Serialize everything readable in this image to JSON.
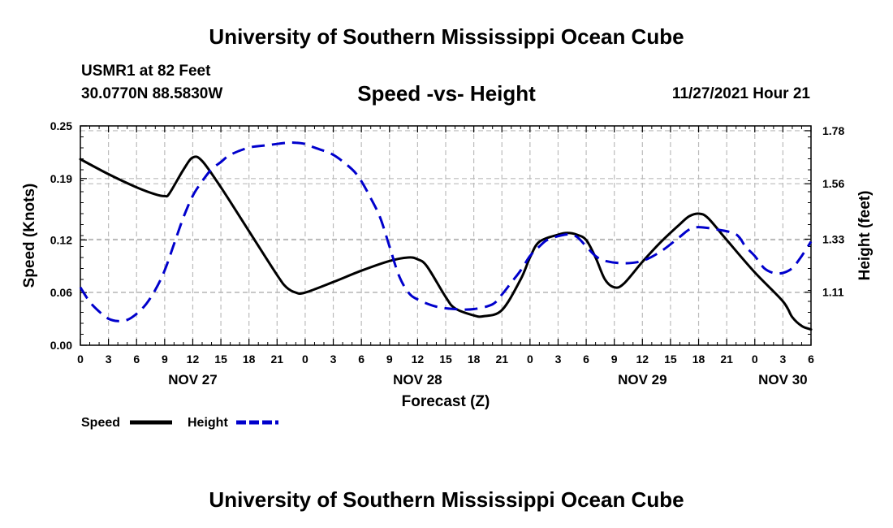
{
  "page": {
    "main_title": "University of Southern Mississippi Ocean Cube",
    "footer_title": "University of Southern Mississippi Ocean Cube",
    "station_name": "USMR1 at 82 Feet",
    "station_coords": "30.0770N  88.5830W",
    "chart_title": "Speed -vs- Height",
    "date_label": "11/27/2021 Hour 21"
  },
  "chart_data": {
    "type": "line",
    "title": "Speed -vs- Height",
    "xlabel": "Forecast (Z)",
    "ylabel_left": "Speed (Knots)",
    "ylabel_right": "Height (feet)",
    "x_range": [
      0,
      78
    ],
    "x_ticks": [
      {
        "x": 0,
        "label": "0"
      },
      {
        "x": 3,
        "label": "3"
      },
      {
        "x": 6,
        "label": "6"
      },
      {
        "x": 9,
        "label": "9"
      },
      {
        "x": 12,
        "label": "12"
      },
      {
        "x": 15,
        "label": "15"
      },
      {
        "x": 18,
        "label": "18"
      },
      {
        "x": 21,
        "label": "21"
      },
      {
        "x": 24,
        "label": "0"
      },
      {
        "x": 27,
        "label": "3"
      },
      {
        "x": 30,
        "label": "6"
      },
      {
        "x": 33,
        "label": "9"
      },
      {
        "x": 36,
        "label": "12"
      },
      {
        "x": 39,
        "label": "15"
      },
      {
        "x": 42,
        "label": "18"
      },
      {
        "x": 45,
        "label": "21"
      },
      {
        "x": 48,
        "label": "0"
      },
      {
        "x": 51,
        "label": "3"
      },
      {
        "x": 54,
        "label": "6"
      },
      {
        "x": 57,
        "label": "9"
      },
      {
        "x": 60,
        "label": "12"
      },
      {
        "x": 63,
        "label": "15"
      },
      {
        "x": 66,
        "label": "18"
      },
      {
        "x": 69,
        "label": "21"
      },
      {
        "x": 72,
        "label": "0"
      },
      {
        "x": 75,
        "label": "3"
      },
      {
        "x": 78,
        "label": "6"
      }
    ],
    "day_labels": [
      {
        "x": 12,
        "label": "NOV 27"
      },
      {
        "x": 36,
        "label": "NOV 28"
      },
      {
        "x": 60,
        "label": "NOV 29"
      },
      {
        "x": 75,
        "label": "NOV 30"
      }
    ],
    "y_left": {
      "min": 0,
      "max": 0.25,
      "ticks": [
        0.0,
        0.06,
        0.12,
        0.19,
        0.25
      ],
      "tick_labels": [
        "0.00",
        "0.06",
        "0.12",
        "0.19",
        "0.25"
      ]
    },
    "y_right": {
      "min": 0.89,
      "max": 1.8,
      "ticks": [
        1.11,
        1.33,
        1.56,
        1.78
      ],
      "tick_labels": [
        "1.11",
        "1.33",
        "1.56",
        "1.78"
      ]
    },
    "series": [
      {
        "name": "Speed",
        "axis": "left",
        "color": "#000000",
        "dashed": false,
        "points": [
          [
            0,
            0.212
          ],
          [
            3,
            0.195
          ],
          [
            6,
            0.18
          ],
          [
            8,
            0.172
          ],
          [
            9,
            0.17
          ],
          [
            9.5,
            0.173
          ],
          [
            11,
            0.2
          ],
          [
            12,
            0.214
          ],
          [
            13,
            0.21
          ],
          [
            15,
            0.18
          ],
          [
            18,
            0.13
          ],
          [
            21,
            0.08
          ],
          [
            22,
            0.066
          ],
          [
            23,
            0.06
          ],
          [
            24,
            0.06
          ],
          [
            27,
            0.072
          ],
          [
            30,
            0.085
          ],
          [
            33,
            0.096
          ],
          [
            35,
            0.1
          ],
          [
            36,
            0.098
          ],
          [
            37,
            0.09
          ],
          [
            39,
            0.055
          ],
          [
            40,
            0.042
          ],
          [
            42,
            0.034
          ],
          [
            43,
            0.033
          ],
          [
            45,
            0.04
          ],
          [
            47,
            0.075
          ],
          [
            48,
            0.1
          ],
          [
            49,
            0.118
          ],
          [
            51,
            0.126
          ],
          [
            52,
            0.128
          ],
          [
            53,
            0.126
          ],
          [
            54,
            0.12
          ],
          [
            55,
            0.1
          ],
          [
            56,
            0.075
          ],
          [
            57,
            0.066
          ],
          [
            58,
            0.07
          ],
          [
            60,
            0.095
          ],
          [
            62,
            0.118
          ],
          [
            64,
            0.138
          ],
          [
            65,
            0.147
          ],
          [
            66,
            0.15
          ],
          [
            67,
            0.145
          ],
          [
            69,
            0.12
          ],
          [
            72,
            0.083
          ],
          [
            75,
            0.05
          ],
          [
            76,
            0.032
          ],
          [
            77,
            0.022
          ],
          [
            78,
            0.018
          ]
        ]
      },
      {
        "name": "Height",
        "axis": "right",
        "color": "#0000cc",
        "dashed": true,
        "points": [
          [
            0,
            1.13
          ],
          [
            1,
            1.07
          ],
          [
            2,
            1.03
          ],
          [
            3,
            1.0
          ],
          [
            4,
            0.99
          ],
          [
            5,
            0.995
          ],
          [
            6,
            1.02
          ],
          [
            7,
            1.06
          ],
          [
            8,
            1.12
          ],
          [
            9,
            1.2
          ],
          [
            10,
            1.31
          ],
          [
            11,
            1.42
          ],
          [
            12,
            1.51
          ],
          [
            13,
            1.57
          ],
          [
            14,
            1.62
          ],
          [
            15,
            1.65
          ],
          [
            16,
            1.68
          ],
          [
            18,
            1.71
          ],
          [
            20,
            1.72
          ],
          [
            22,
            1.73
          ],
          [
            23,
            1.73
          ],
          [
            24,
            1.725
          ],
          [
            25,
            1.71
          ],
          [
            27,
            1.68
          ],
          [
            29,
            1.62
          ],
          [
            30,
            1.57
          ],
          [
            31,
            1.5
          ],
          [
            32,
            1.42
          ],
          [
            33,
            1.3
          ],
          [
            34,
            1.18
          ],
          [
            35,
            1.11
          ],
          [
            36,
            1.08
          ],
          [
            38,
            1.05
          ],
          [
            40,
            1.04
          ],
          [
            42,
            1.04
          ],
          [
            44,
            1.06
          ],
          [
            45,
            1.1
          ],
          [
            46,
            1.15
          ],
          [
            47,
            1.2
          ],
          [
            48,
            1.26
          ],
          [
            49,
            1.3
          ],
          [
            50,
            1.33
          ],
          [
            52,
            1.35
          ],
          [
            53,
            1.34
          ],
          [
            54,
            1.3
          ],
          [
            55,
            1.26
          ],
          [
            56,
            1.24
          ],
          [
            58,
            1.23
          ],
          [
            60,
            1.24
          ],
          [
            62,
            1.28
          ],
          [
            64,
            1.34
          ],
          [
            65,
            1.37
          ],
          [
            66,
            1.38
          ],
          [
            68,
            1.37
          ],
          [
            70,
            1.35
          ],
          [
            71,
            1.3
          ],
          [
            72,
            1.26
          ],
          [
            73,
            1.21
          ],
          [
            74,
            1.19
          ],
          [
            75,
            1.19
          ],
          [
            76,
            1.21
          ],
          [
            77,
            1.26
          ],
          [
            78,
            1.32
          ]
        ]
      }
    ],
    "legend": [
      {
        "label": "Speed",
        "color": "#000000",
        "dashed": false
      },
      {
        "label": "Height",
        "color": "#0000cc",
        "dashed": true
      }
    ],
    "grid": true
  }
}
